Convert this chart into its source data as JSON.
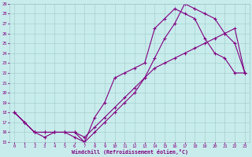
{
  "xlabel": "Windchill (Refroidissement éolien,°C)",
  "bg_color": "#c8ecec",
  "line_color": "#800080",
  "grid_color": "#a0c8c8",
  "xlim": [
    -0.5,
    23.5
  ],
  "ylim": [
    15,
    29
  ],
  "xticks": [
    0,
    1,
    2,
    3,
    4,
    5,
    6,
    7,
    8,
    9,
    10,
    11,
    12,
    13,
    14,
    15,
    16,
    17,
    18,
    19,
    20,
    21,
    22,
    23
  ],
  "yticks": [
    15,
    16,
    17,
    18,
    19,
    20,
    21,
    22,
    23,
    24,
    25,
    26,
    27,
    28,
    29
  ],
  "line1_x": [
    0,
    1,
    2,
    3,
    4,
    5,
    6,
    7,
    8,
    9,
    10,
    11,
    12,
    13,
    14,
    15,
    16,
    17,
    18,
    19,
    20,
    21,
    22,
    23
  ],
  "line1_y": [
    18.0,
    17.0,
    16.0,
    16.0,
    16.0,
    16.0,
    16.0,
    15.5,
    16.5,
    17.5,
    18.5,
    19.5,
    20.5,
    21.5,
    22.5,
    23.0,
    23.5,
    24.0,
    24.5,
    25.0,
    25.5,
    26.0,
    26.5,
    22.0
  ],
  "line2_x": [
    0,
    1,
    2,
    3,
    4,
    5,
    6,
    7,
    8,
    9,
    10,
    11,
    12,
    13,
    14,
    15,
    16,
    17,
    18,
    19,
    20,
    21,
    22,
    23
  ],
  "line2_y": [
    18.0,
    17.0,
    16.0,
    16.0,
    16.0,
    16.0,
    16.0,
    15.0,
    17.5,
    19.0,
    21.5,
    22.0,
    22.5,
    23.0,
    26.5,
    27.5,
    28.5,
    28.0,
    27.5,
    25.5,
    24.0,
    23.5,
    22.0,
    22.0
  ],
  "line3_x": [
    0,
    1,
    2,
    3,
    4,
    5,
    6,
    7,
    8,
    9,
    10,
    11,
    12,
    13,
    14,
    15,
    16,
    17,
    18,
    19,
    20,
    21,
    22,
    23
  ],
  "line3_y": [
    18.0,
    17.0,
    16.0,
    15.5,
    16.0,
    16.0,
    15.5,
    15.0,
    16.0,
    17.0,
    18.0,
    19.0,
    20.0,
    21.5,
    23.5,
    25.5,
    27.0,
    29.0,
    28.5,
    28.0,
    27.5,
    26.0,
    25.0,
    22.0
  ]
}
